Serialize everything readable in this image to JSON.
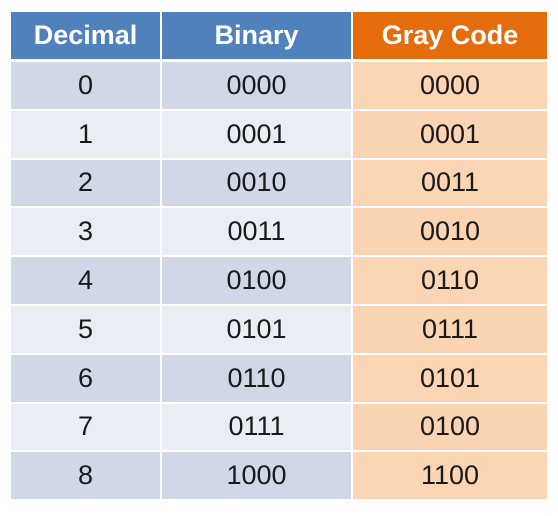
{
  "headers": {
    "decimal": "Decimal",
    "binary": "Binary",
    "gray": "Gray Code"
  },
  "rows": [
    {
      "decimal": "0",
      "binary": "0000",
      "gray": "0000"
    },
    {
      "decimal": "1",
      "binary": "0001",
      "gray": "0001"
    },
    {
      "decimal": "2",
      "binary": "0010",
      "gray": "0011"
    },
    {
      "decimal": "3",
      "binary": "0011",
      "gray": "0010"
    },
    {
      "decimal": "4",
      "binary": "0100",
      "gray": "0110"
    },
    {
      "decimal": "5",
      "binary": "0101",
      "gray": "0111"
    },
    {
      "decimal": "6",
      "binary": "0110",
      "gray": "0101"
    },
    {
      "decimal": "7",
      "binary": "0111",
      "gray": "0100"
    },
    {
      "decimal": "8",
      "binary": "1000",
      "gray": "1100"
    }
  ],
  "colors": {
    "header_blue": "#4f81bd",
    "header_orange": "#e46c0a",
    "row_blue_dark": "#d0d8e8",
    "row_blue_light": "#e9edf4",
    "row_orange": "#fcd5b5"
  }
}
